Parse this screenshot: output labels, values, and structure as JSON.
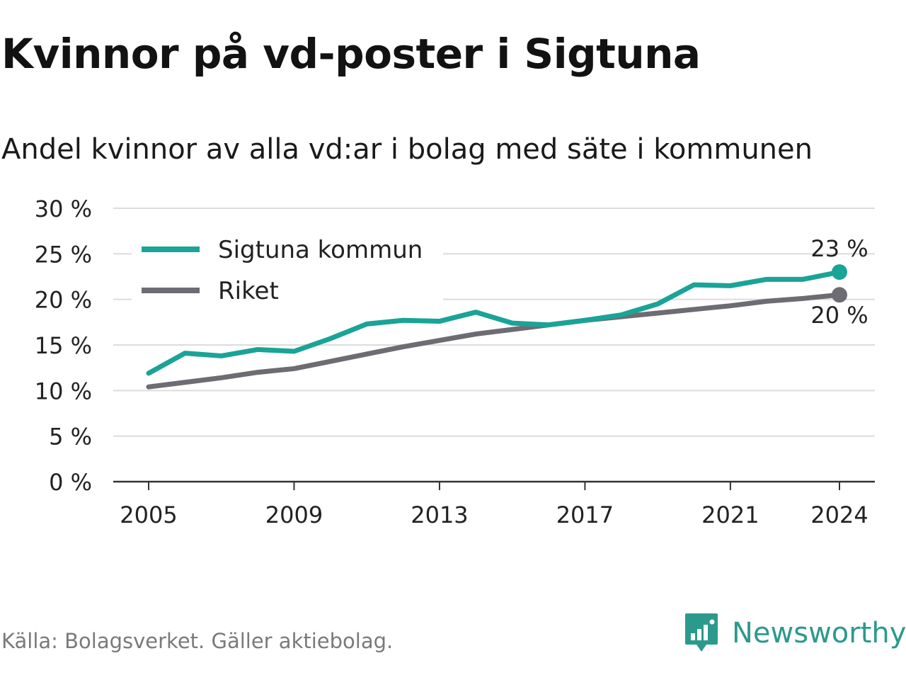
{
  "title": "Kvinnor på vd-poster i Sigtuna",
  "subtitle": "Andel kvinnor av alla vd:ar i bolag med säte i kommunen",
  "source": "Källa: Bolagsverket. Gäller aktiebolag.",
  "brand": "Newsworthy",
  "colors": {
    "sigtuna": "#1aa397",
    "riket": "#6d6c73",
    "grid": "#dcdcdc",
    "axis": "#333333",
    "brand": "#2b9a8c"
  },
  "chart_data": {
    "type": "line",
    "x": [
      2005,
      2006,
      2007,
      2008,
      2009,
      2010,
      2011,
      2012,
      2013,
      2014,
      2015,
      2016,
      2017,
      2018,
      2019,
      2020,
      2021,
      2022,
      2023,
      2024
    ],
    "series": [
      {
        "name": "Sigtuna kommun",
        "values": [
          11.9,
          14.1,
          13.8,
          14.5,
          14.3,
          15.7,
          17.3,
          17.7,
          17.6,
          18.6,
          17.4,
          17.2,
          17.7,
          18.3,
          19.5,
          21.6,
          21.5,
          22.2,
          22.2,
          23.0
        ],
        "end_label": "23 %"
      },
      {
        "name": "Riket",
        "values": [
          10.4,
          10.9,
          11.4,
          12.0,
          12.4,
          13.2,
          14.0,
          14.8,
          15.5,
          16.2,
          16.7,
          17.2,
          17.7,
          18.1,
          18.5,
          18.9,
          19.3,
          19.8,
          20.1,
          20.5
        ],
        "end_label": "20 %"
      }
    ],
    "xticks": [
      2005,
      2009,
      2013,
      2017,
      2021,
      2024
    ],
    "xtick_labels": [
      "2005",
      "2009",
      "2013",
      "2017",
      "2021",
      "2024"
    ],
    "yticks": [
      0,
      5,
      10,
      15,
      20,
      25,
      30
    ],
    "ytick_labels": [
      "0 %",
      "5 %",
      "10 %",
      "15 %",
      "20 %",
      "25 %",
      "30 %"
    ],
    "ylim": [
      0,
      30
    ],
    "xlim": [
      2004,
      2025
    ],
    "grid": true,
    "legend_position": "top-left",
    "xlabel": "",
    "ylabel": ""
  }
}
